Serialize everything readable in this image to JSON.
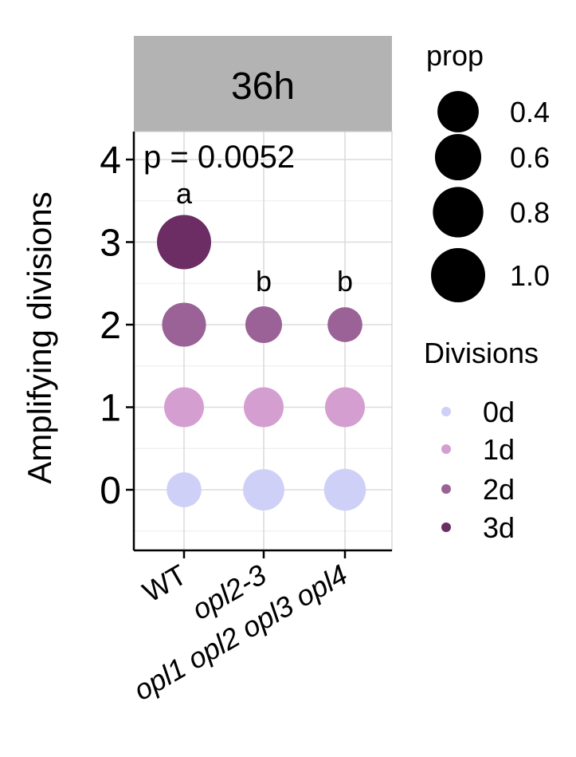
{
  "chart_data": {
    "type": "scatter",
    "facet_label": "36h",
    "ylabel": "Amplifying divisions",
    "xlabel": "",
    "categories": [
      "WT",
      "opl2-3",
      "opl1 opl2 opl3 opl4"
    ],
    "y_ticks": [
      "0",
      "1",
      "2",
      "3",
      "4"
    ],
    "ylim": [
      -0.6,
      4.3
    ],
    "grid": true,
    "annotation": "p = 0.0052",
    "group_letters": [
      {
        "category": "WT",
        "y": 3,
        "label": "a"
      },
      {
        "category": "opl2-3",
        "y": 2,
        "label": "b"
      },
      {
        "category": "opl1 opl2 opl3 opl4",
        "y": 2,
        "label": "b"
      }
    ],
    "points": [
      {
        "category": "WT",
        "y": 3,
        "prop": 1.0,
        "division": "3d"
      },
      {
        "category": "WT",
        "y": 2,
        "prop": 0.5,
        "division": "2d"
      },
      {
        "category": "WT",
        "y": 1,
        "prop": 0.35,
        "division": "1d"
      },
      {
        "category": "WT",
        "y": 0,
        "prop": 0.2,
        "division": "0d"
      },
      {
        "category": "opl2-3",
        "y": 2,
        "prop": 0.25,
        "division": "2d"
      },
      {
        "category": "opl2-3",
        "y": 1,
        "prop": 0.35,
        "division": "1d"
      },
      {
        "category": "opl2-3",
        "y": 0,
        "prop": 0.4,
        "division": "0d"
      },
      {
        "category": "opl1 opl2 opl3 opl4",
        "y": 2,
        "prop": 0.2,
        "division": "2d"
      },
      {
        "category": "opl1 opl2 opl3 opl4",
        "y": 1,
        "prop": 0.35,
        "division": "1d"
      },
      {
        "category": "opl1 opl2 opl3 opl4",
        "y": 0,
        "prop": 0.42,
        "division": "0d"
      }
    ],
    "size_legend": {
      "title": "prop",
      "values": [
        0.4,
        0.6,
        0.8,
        1.0
      ],
      "labels": [
        "0.4",
        "0.6",
        "0.8",
        "1.0"
      ]
    },
    "color_legend": {
      "title": "Divisions",
      "items": [
        {
          "label": "0d",
          "color": "#cfd0f7"
        },
        {
          "label": "1d",
          "color": "#d49fd0"
        },
        {
          "label": "2d",
          "color": "#9a6296"
        },
        {
          "label": "3d",
          "color": "#6b2d63"
        }
      ]
    },
    "colors": {
      "strip_fill": "#b3b3b3",
      "strip_text": "#ffffff",
      "grid": "#dcdcdc",
      "axis": "#000000"
    }
  }
}
